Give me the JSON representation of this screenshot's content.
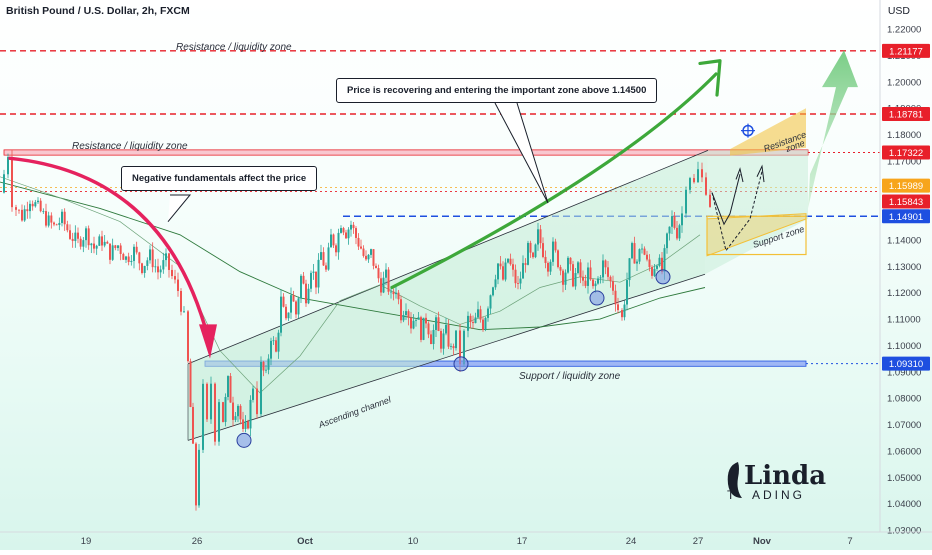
{
  "header": {
    "symbol": "British Pound / U.S. Dollar, 2h, FXCM",
    "currency": "USD"
  },
  "callouts": {
    "negative": "Negative fundamentals affect the price",
    "recovering": "Price is recovering and entering the important zone above 1.14500"
  },
  "zones": {
    "resistance_top": "Resistance / liquidity zone",
    "resistance_mid": "Resistance / liquidity zone",
    "support_bottom": "Support / liquidity zone",
    "resistance_small_line1": "Resistance",
    "resistance_small_line2": "zone",
    "support_small": "Support zone",
    "channel": "Ascending channel"
  },
  "watermark": {
    "brand_top": "Linda",
    "brand_bottom": "ADING"
  },
  "colors": {
    "bull": "#26a69a",
    "bear": "#ef5350",
    "red_level": "#e8202a",
    "blue_level": "#1e4fe0",
    "channel_fill": "#c3ebd6",
    "green_arrow": "#3da83a",
    "pink_arrow": "#e5225e",
    "orange_zone": "#f3c037"
  },
  "chart_data": {
    "type": "candlestick",
    "symbol": "GBPUSD",
    "timeframe": "2h",
    "ylim": [
      1.03,
      1.2265
    ],
    "y_ticks": [
      1.03,
      1.04,
      1.05,
      1.06,
      1.07,
      1.08,
      1.09,
      1.1,
      1.11,
      1.12,
      1.13,
      1.14,
      1.15,
      1.16,
      1.17,
      1.18,
      1.19,
      1.2,
      1.21,
      1.22
    ],
    "y_tick_labels": [
      "1.03000",
      "1.04000",
      "1.05000",
      "1.06000",
      "1.07000",
      "1.08000",
      "1.09000",
      "1.10000",
      "1.11000",
      "1.12000",
      "1.13000",
      "1.14000",
      "1.15000",
      "1.16000",
      "1.17000",
      "1.18000",
      "1.19000",
      "1.20000",
      "1.21000",
      "1.22000"
    ],
    "x_ticks": [
      "19",
      "26",
      "Oct",
      "10",
      "17",
      "24",
      "27",
      "Nov",
      "7"
    ],
    "price_levels": [
      {
        "label": "1.21177",
        "value": 1.21177,
        "color": "#e8202a"
      },
      {
        "label": "1.18781",
        "value": 1.18781,
        "color": "#e8202a"
      },
      {
        "label": "1.17322",
        "value": 1.17322,
        "color": "#e8202a"
      },
      {
        "label": "1.15989",
        "value": 1.15989,
        "color": "#f7a51c"
      },
      {
        "label": "1.15843",
        "value": 1.15843,
        "color": "#e8202a"
      },
      {
        "label": "1.14901",
        "value": 1.14901,
        "color": "#1e4fe0"
      },
      {
        "label": "1.09310",
        "value": 1.0931,
        "color": "#1e4fe0"
      }
    ],
    "path": [
      [
        0,
        1.158
      ],
      [
        4,
        1.165
      ],
      [
        8,
        1.173
      ],
      [
        12,
        1.155
      ],
      [
        16,
        1.152
      ],
      [
        22,
        1.149
      ],
      [
        30,
        1.156
      ],
      [
        38,
        1.152
      ],
      [
        46,
        1.148
      ],
      [
        54,
        1.145
      ],
      [
        62,
        1.148
      ],
      [
        70,
        1.142
      ],
      [
        78,
        1.139
      ],
      [
        86,
        1.143
      ],
      [
        94,
        1.137
      ],
      [
        102,
        1.14
      ],
      [
        110,
        1.135
      ],
      [
        118,
        1.138
      ],
      [
        126,
        1.133
      ],
      [
        134,
        1.136
      ],
      [
        142,
        1.13
      ],
      [
        150,
        1.134
      ],
      [
        158,
        1.128
      ],
      [
        166,
        1.132
      ],
      [
        172,
        1.126
      ],
      [
        178,
        1.121
      ],
      [
        184,
        1.11
      ],
      [
        188,
        1.093
      ],
      [
        193,
        1.06
      ],
      [
        196,
        1.04
      ],
      [
        199,
        1.062
      ],
      [
        203,
        1.083
      ],
      [
        207,
        1.07
      ],
      [
        211,
        1.086
      ],
      [
        215,
        1.066
      ],
      [
        219,
        1.08
      ],
      [
        223,
        1.072
      ],
      [
        228,
        1.086
      ],
      [
        233,
        1.074
      ],
      [
        238,
        1.078
      ],
      [
        243,
        1.066
      ],
      [
        248,
        1.071
      ],
      [
        253,
        1.085
      ],
      [
        257,
        1.076
      ],
      [
        261,
        1.092
      ],
      [
        266,
        1.088
      ],
      [
        271,
        1.104
      ],
      [
        276,
        1.097
      ],
      [
        281,
        1.117
      ],
      [
        286,
        1.108
      ],
      [
        291,
        1.12
      ],
      [
        296,
        1.112
      ],
      [
        301,
        1.126
      ],
      [
        306,
        1.119
      ],
      [
        311,
        1.13
      ],
      [
        316,
        1.124
      ],
      [
        321,
        1.135
      ],
      [
        326,
        1.128
      ],
      [
        331,
        1.141
      ],
      [
        336,
        1.138
      ],
      [
        341,
        1.147
      ],
      [
        346,
        1.143
      ],
      [
        351,
        1.146
      ],
      [
        356,
        1.141
      ],
      [
        361,
        1.137
      ],
      [
        366,
        1.131
      ],
      [
        371,
        1.135
      ],
      [
        376,
        1.128
      ],
      [
        381,
        1.123
      ],
      [
        386,
        1.126
      ],
      [
        391,
        1.118
      ],
      [
        396,
        1.122
      ],
      [
        401,
        1.112
      ],
      [
        406,
        1.116
      ],
      [
        411,
        1.108
      ],
      [
        416,
        1.112
      ],
      [
        421,
        1.105
      ],
      [
        426,
        1.11
      ],
      [
        431,
        1.103
      ],
      [
        436,
        1.108
      ],
      [
        441,
        1.101
      ],
      [
        446,
        1.105
      ],
      [
        451,
        1.098
      ],
      [
        456,
        1.103
      ],
      [
        460,
        1.094
      ],
      [
        464,
        1.104
      ],
      [
        468,
        1.11
      ],
      [
        473,
        1.107
      ],
      [
        478,
        1.112
      ],
      [
        483,
        1.108
      ],
      [
        488,
        1.116
      ],
      [
        493,
        1.124
      ],
      [
        498,
        1.131
      ],
      [
        503,
        1.125
      ],
      [
        508,
        1.133
      ],
      [
        513,
        1.127
      ],
      [
        518,
        1.122
      ],
      [
        523,
        1.13
      ],
      [
        528,
        1.136
      ],
      [
        533,
        1.131
      ],
      [
        538,
        1.142
      ],
      [
        543,
        1.136
      ],
      [
        548,
        1.131
      ],
      [
        553,
        1.137
      ],
      [
        558,
        1.132
      ],
      [
        563,
        1.126
      ],
      [
        568,
        1.131
      ],
      [
        573,
        1.125
      ],
      [
        578,
        1.129
      ],
      [
        583,
        1.123
      ],
      [
        588,
        1.127
      ],
      [
        593,
        1.121
      ],
      [
        598,
        1.125
      ],
      [
        603,
        1.131
      ],
      [
        608,
        1.126
      ],
      [
        613,
        1.122
      ],
      [
        618,
        1.114
      ],
      [
        622,
        1.11
      ],
      [
        627,
        1.125
      ],
      [
        632,
        1.136
      ],
      [
        637,
        1.132
      ],
      [
        642,
        1.138
      ],
      [
        647,
        1.131
      ],
      [
        652,
        1.128
      ],
      [
        657,
        1.133
      ],
      [
        662,
        1.128
      ],
      [
        667,
        1.14
      ],
      [
        672,
        1.148
      ],
      [
        677,
        1.143
      ],
      [
        682,
        1.15
      ],
      [
        686,
        1.162
      ],
      [
        690,
        1.165
      ],
      [
        694,
        1.161
      ],
      [
        698,
        1.166
      ],
      [
        702,
        1.163
      ],
      [
        706,
        1.16
      ],
      [
        710,
        1.154
      ]
    ],
    "channel": {
      "lower": [
        [
          188,
          1.064
        ],
        [
          705,
          1.127
        ]
      ],
      "upper": [
        [
          188,
          1.093
        ],
        [
          708,
          1.174
        ]
      ]
    },
    "ma_fast": [
      [
        0,
        1.164
      ],
      [
        60,
        1.156
      ],
      [
        120,
        1.147
      ],
      [
        180,
        1.13
      ],
      [
        220,
        1.098
      ],
      [
        260,
        1.082
      ],
      [
        300,
        1.096
      ],
      [
        340,
        1.117
      ],
      [
        380,
        1.123
      ],
      [
        420,
        1.115
      ],
      [
        460,
        1.108
      ],
      [
        500,
        1.113
      ],
      [
        540,
        1.122
      ],
      [
        580,
        1.126
      ],
      [
        620,
        1.124
      ],
      [
        660,
        1.131
      ],
      [
        700,
        1.142
      ]
    ],
    "ma_slow": [
      [
        0,
        1.162
      ],
      [
        100,
        1.152
      ],
      [
        180,
        1.142
      ],
      [
        240,
        1.128
      ],
      [
        300,
        1.118
      ],
      [
        360,
        1.114
      ],
      [
        420,
        1.11
      ],
      [
        480,
        1.106
      ],
      [
        540,
        1.107
      ],
      [
        600,
        1.11
      ],
      [
        660,
        1.118
      ],
      [
        705,
        1.122
      ]
    ],
    "circles": [
      [
        244,
        1.064
      ],
      [
        461,
        1.093
      ],
      [
        597,
        1.118
      ],
      [
        663,
        1.126
      ]
    ]
  }
}
